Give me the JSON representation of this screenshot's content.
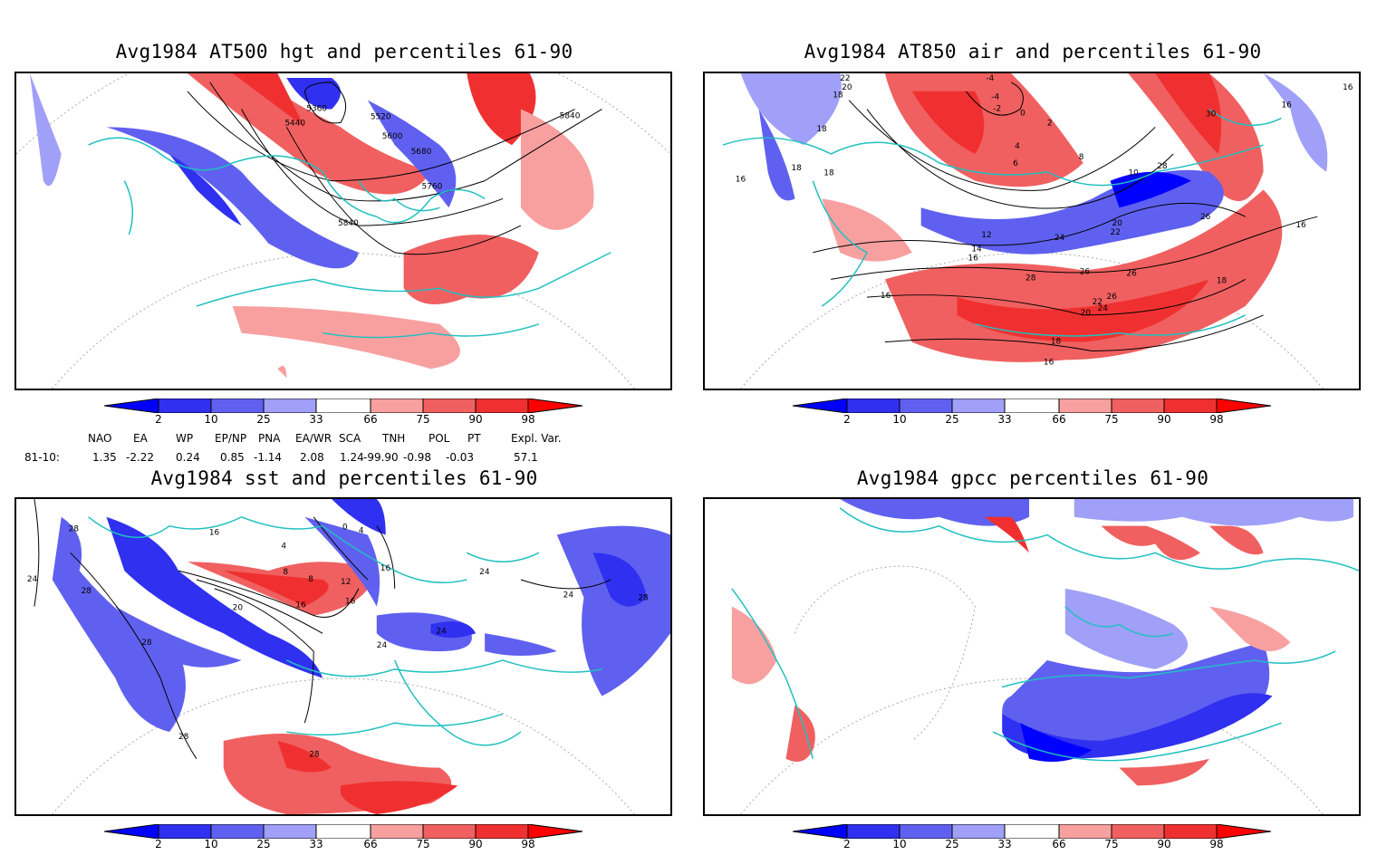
{
  "panels": [
    {
      "title": "Avg1984 AT500 hgt and percentiles 61-90",
      "contour_labels": [
        "5360",
        "5440",
        "5520",
        "5600",
        "5680",
        "5760",
        "5840",
        "5840"
      ]
    },
    {
      "title": "Avg1984 AT850 air and percentiles 61-90",
      "contour_labels": [
        "22",
        "20",
        "18",
        "-4",
        "-4",
        "-2",
        "0",
        "2",
        "4",
        "6",
        "8",
        "10",
        "12",
        "14",
        "16",
        "16",
        "16",
        "16",
        "18",
        "18",
        "18",
        "20",
        "22",
        "24",
        "26",
        "26",
        "28",
        "28",
        "26",
        "30",
        "16",
        "16",
        "18",
        "20",
        "22",
        "24",
        "26",
        "16",
        "18"
      ]
    },
    {
      "title": "Avg1984 sst and percentiles 61-90",
      "contour_labels": [
        "28",
        "24",
        "28",
        "28",
        "28",
        "16",
        "4",
        "8",
        "0",
        "4",
        "8",
        "12",
        "16",
        "20",
        "16",
        "16",
        "24",
        "24",
        "24",
        "28",
        "28",
        "24"
      ]
    },
    {
      "title": "Avg1984 gpcc percentiles 61-90",
      "contour_labels": []
    }
  ],
  "colorbar": {
    "ticks": [
      "2",
      "10",
      "25",
      "33",
      "66",
      "75",
      "90",
      "98"
    ],
    "colors": [
      "#0000ff",
      "#3030f0",
      "#6060f0",
      "#a0a0f8",
      "#ffffff",
      "#f8a0a0",
      "#f06060",
      "#f03030",
      "#ff0000"
    ]
  },
  "indices": {
    "headers": [
      "NAO",
      "EA",
      "WP",
      "EP/NP",
      "PNA",
      "EA/WR",
      "SCA",
      "TNH",
      "POL",
      "PT",
      "Expl. Var."
    ],
    "row_label": "81-10:",
    "values": [
      "1.35",
      "-2.22",
      "0.24",
      "0.85",
      "-1.14",
      "2.08",
      "1.24",
      "-99.90",
      "-0.98",
      "-0.03",
      "57.1"
    ]
  }
}
